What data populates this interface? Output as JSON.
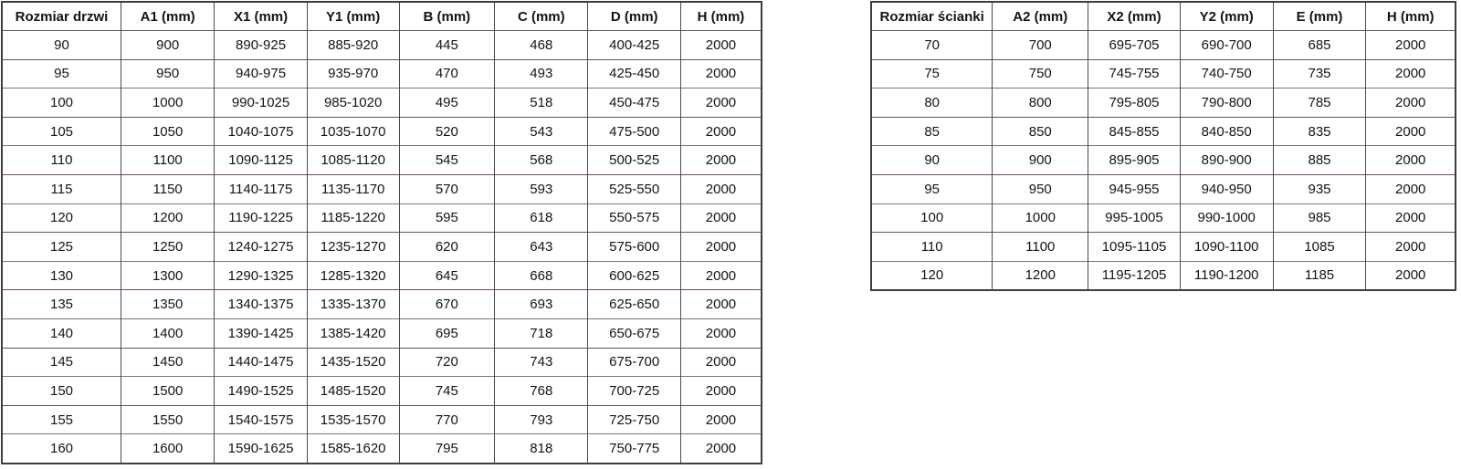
{
  "door_table": {
    "headers": [
      "Rozmiar drzwi",
      "A1 (mm)",
      "X1 (mm)",
      "Y1 (mm)",
      "B (mm)",
      "C (mm)",
      "D (mm)",
      "H (mm)"
    ],
    "rows": [
      [
        "90",
        "900",
        "890-925",
        "885-920",
        "445",
        "468",
        "400-425",
        "2000"
      ],
      [
        "95",
        "950",
        "940-975",
        "935-970",
        "470",
        "493",
        "425-450",
        "2000"
      ],
      [
        "100",
        "1000",
        "990-1025",
        "985-1020",
        "495",
        "518",
        "450-475",
        "2000"
      ],
      [
        "105",
        "1050",
        "1040-1075",
        "1035-1070",
        "520",
        "543",
        "475-500",
        "2000"
      ],
      [
        "110",
        "1100",
        "1090-1125",
        "1085-1120",
        "545",
        "568",
        "500-525",
        "2000"
      ],
      [
        "115",
        "1150",
        "1140-1175",
        "1135-1170",
        "570",
        "593",
        "525-550",
        "2000"
      ],
      [
        "120",
        "1200",
        "1190-1225",
        "1185-1220",
        "595",
        "618",
        "550-575",
        "2000"
      ],
      [
        "125",
        "1250",
        "1240-1275",
        "1235-1270",
        "620",
        "643",
        "575-600",
        "2000"
      ],
      [
        "130",
        "1300",
        "1290-1325",
        "1285-1320",
        "645",
        "668",
        "600-625",
        "2000"
      ],
      [
        "135",
        "1350",
        "1340-1375",
        "1335-1370",
        "670",
        "693",
        "625-650",
        "2000"
      ],
      [
        "140",
        "1400",
        "1390-1425",
        "1385-1420",
        "695",
        "718",
        "650-675",
        "2000"
      ],
      [
        "145",
        "1450",
        "1440-1475",
        "1435-1520",
        "720",
        "743",
        "675-700",
        "2000"
      ],
      [
        "150",
        "1500",
        "1490-1525",
        "1485-1520",
        "745",
        "768",
        "700-725",
        "2000"
      ],
      [
        "155",
        "1550",
        "1540-1575",
        "1535-1570",
        "770",
        "793",
        "725-750",
        "2000"
      ],
      [
        "160",
        "1600",
        "1590-1625",
        "1585-1620",
        "795",
        "818",
        "750-775",
        "2000"
      ]
    ]
  },
  "wall_table": {
    "headers": [
      "Rozmiar ścianki",
      "A2 (mm)",
      "X2 (mm)",
      "Y2 (mm)",
      "E (mm)",
      "H (mm)"
    ],
    "rows": [
      [
        "70",
        "700",
        "695-705",
        "690-700",
        "685",
        "2000"
      ],
      [
        "75",
        "750",
        "745-755",
        "740-750",
        "735",
        "2000"
      ],
      [
        "80",
        "800",
        "795-805",
        "790-800",
        "785",
        "2000"
      ],
      [
        "85",
        "850",
        "845-855",
        "840-850",
        "835",
        "2000"
      ],
      [
        "90",
        "900",
        "895-905",
        "890-900",
        "885",
        "2000"
      ],
      [
        "95",
        "950",
        "945-955",
        "940-950",
        "935",
        "2000"
      ],
      [
        "100",
        "1000",
        "995-1005",
        "990-1000",
        "985",
        "2000"
      ],
      [
        "110",
        "1100",
        "1095-1105",
        "1090-1100",
        "1085",
        "2000"
      ],
      [
        "120",
        "1200",
        "1195-1205",
        "1190-1200",
        "1185",
        "2000"
      ]
    ]
  },
  "colors": {
    "background": "#ffffff",
    "text": "#141414",
    "outer_border": "#3a3f3c",
    "vertical_border": "#4a4a4a",
    "separator_green": "#65806f",
    "separator_maroon": "#6f4f49",
    "header_separator": "#4f635b"
  }
}
